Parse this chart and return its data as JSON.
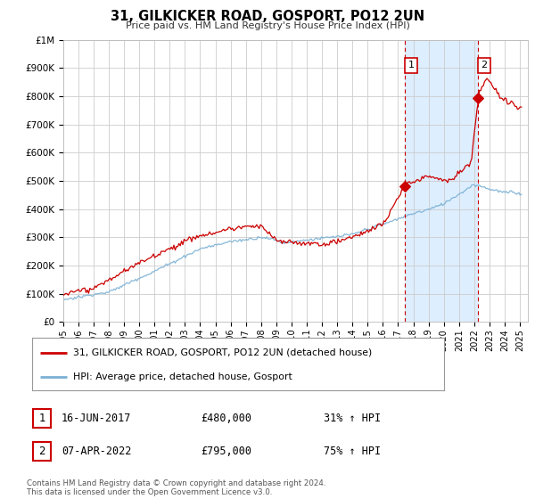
{
  "title": "31, GILKICKER ROAD, GOSPORT, PO12 2UN",
  "subtitle": "Price paid vs. HM Land Registry's House Price Index (HPI)",
  "legend_line1": "31, GILKICKER ROAD, GOSPORT, PO12 2UN (detached house)",
  "legend_line2": "HPI: Average price, detached house, Gosport",
  "annotation1_date": "16-JUN-2017",
  "annotation1_price": "£480,000",
  "annotation1_hpi": "31% ↑ HPI",
  "annotation2_date": "07-APR-2022",
  "annotation2_price": "£795,000",
  "annotation2_hpi": "75% ↑ HPI",
  "footnote": "Contains HM Land Registry data © Crown copyright and database right 2024.\nThis data is licensed under the Open Government Licence v3.0.",
  "red_line_color": "#cc0000",
  "blue_line_color": "#7ab0d4",
  "shaded_color": "#ddeeff",
  "background_color": "#ffffff",
  "plot_bg_color": "#ffffff",
  "grid_color": "#cccccc",
  "vline_color": "#cc0000",
  "point1_x": 2017.46,
  "point1_y": 480000,
  "point2_x": 2022.27,
  "point2_y": 795000,
  "xmin": 1995.0,
  "xmax": 2025.5,
  "ymin": 0,
  "ymax": 1000000,
  "yticks": [
    0,
    100000,
    200000,
    300000,
    400000,
    500000,
    600000,
    700000,
    800000,
    900000,
    1000000
  ],
  "ytick_labels": [
    "£0",
    "£100K",
    "£200K",
    "£300K",
    "£400K",
    "£500K",
    "£600K",
    "£700K",
    "£800K",
    "£900K",
    "£1M"
  ],
  "xtick_years": [
    1995,
    1996,
    1997,
    1998,
    1999,
    2000,
    2001,
    2002,
    2003,
    2004,
    2005,
    2006,
    2007,
    2008,
    2009,
    2010,
    2011,
    2012,
    2013,
    2014,
    2015,
    2016,
    2017,
    2018,
    2019,
    2020,
    2021,
    2022,
    2023,
    2024,
    2025
  ]
}
